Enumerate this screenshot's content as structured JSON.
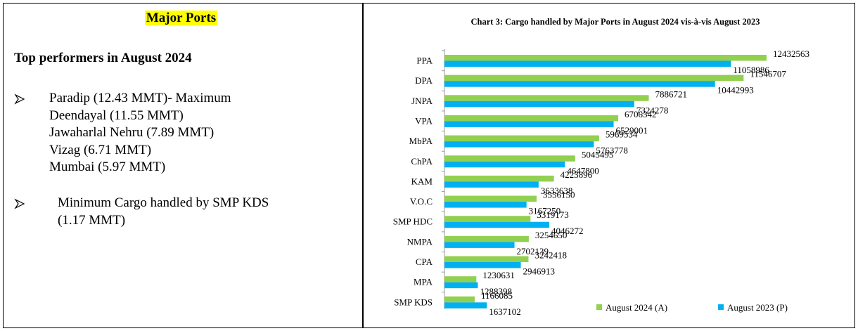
{
  "left": {
    "heading": "Major Ports",
    "subheading": "Top performers in August 2024",
    "bullets": [
      {
        "lines": [
          "Paradip (12.43 MMT)- Maximum",
          "Deendayal (11.55 MMT)",
          "Jawaharlal Nehru (7.89 MMT)",
          "Vizag (6.71 MMT)",
          "Mumbai (5.97 MMT)"
        ]
      },
      {
        "lines": [
          "Minimum Cargo handled by SMP KDS",
          "(1.17 MMT)"
        ]
      }
    ]
  },
  "chart_data": {
    "type": "bar",
    "orientation": "horizontal",
    "title": "Chart 3: Cargo handled by Major Ports in August 2024 vis-à-vis August 2023",
    "categories": [
      "PPA",
      "DPA",
      "JNPA",
      "VPA",
      "MbPA",
      "ChPA",
      "KAM",
      "V.O.C",
      "SMP HDC",
      "NMPA",
      "CPA",
      "MPA",
      "SMP KDS"
    ],
    "series": [
      {
        "name": "August 2024 (A)",
        "color": "#92d050",
        "values": [
          12432563,
          11546707,
          7886721,
          6706342,
          5969534,
          5045495,
          4223896,
          3556150,
          3319173,
          3254650,
          3242418,
          1230631,
          1166085
        ]
      },
      {
        "name": "August 2023 (P)",
        "color": "#00b0f0",
        "values": [
          11058986,
          10442993,
          7324278,
          6529001,
          5763778,
          4647800,
          3633638,
          3167250,
          4046272,
          2702139,
          2946913,
          1288398,
          1637102
        ]
      }
    ],
    "legend": "bottom-right"
  }
}
